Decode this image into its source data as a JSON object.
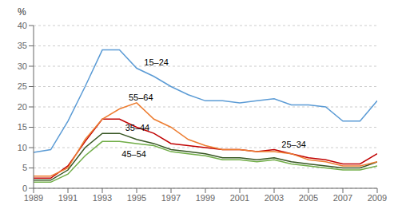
{
  "chart_data": {
    "type": "line",
    "ylabel": "%",
    "x": [
      1989,
      1990,
      1991,
      1992,
      1993,
      1994,
      1995,
      1996,
      1997,
      1998,
      1999,
      2000,
      2001,
      2002,
      2003,
      2004,
      2005,
      2006,
      2007,
      2008,
      2009
    ],
    "series": [
      {
        "name": "15–24",
        "color": "#5b9bd5",
        "values": [
          8.8,
          9.5,
          16.5,
          25.0,
          34.0,
          34.0,
          29.5,
          27.5,
          25.0,
          23.0,
          21.5,
          21.5,
          21.0,
          21.5,
          22.0,
          20.5,
          20.5,
          20.0,
          16.5,
          16.5,
          21.5
        ]
      },
      {
        "name": "25–34",
        "color": "#c00000",
        "values": [
          2.5,
          2.5,
          5.5,
          11.5,
          17.0,
          17.0,
          15.0,
          13.5,
          11.0,
          10.5,
          10.0,
          9.5,
          9.5,
          9.0,
          9.5,
          8.5,
          7.5,
          7.0,
          6.0,
          6.0,
          8.5
        ]
      },
      {
        "name": "35–44",
        "color": "#375623",
        "values": [
          2.0,
          2.0,
          4.5,
          10.0,
          13.5,
          13.5,
          12.0,
          11.0,
          9.5,
          9.0,
          8.5,
          7.5,
          7.5,
          7.0,
          7.5,
          6.5,
          6.0,
          5.5,
          5.0,
          5.0,
          6.5
        ]
      },
      {
        "name": "45–54",
        "color": "#70ad47",
        "values": [
          1.5,
          1.5,
          3.5,
          8.0,
          11.5,
          11.5,
          11.0,
          10.5,
          9.0,
          8.5,
          8.0,
          7.0,
          7.0,
          6.5,
          7.0,
          6.0,
          5.5,
          5.0,
          4.5,
          4.5,
          5.5
        ]
      },
      {
        "name": "55–64",
        "color": "#ed7d31",
        "values": [
          3.0,
          3.0,
          5.0,
          12.0,
          17.0,
          19.5,
          21.0,
          17.0,
          15.0,
          12.0,
          10.5,
          9.5,
          9.5,
          9.0,
          9.0,
          8.5,
          7.0,
          6.5,
          5.5,
          5.5,
          6.5
        ]
      }
    ],
    "annotations": [
      {
        "text": "15–24",
        "x": 1995.2,
        "y": 31.0
      },
      {
        "text": "55–64",
        "x": 1994.3,
        "y": 22.3
      },
      {
        "text": "35–44",
        "x": 1994.1,
        "y": 14.8
      },
      {
        "text": "45–54",
        "x": 1993.9,
        "y": 8.5
      },
      {
        "text": "25–34",
        "x": 2003.2,
        "y": 10.8
      }
    ],
    "xlim": [
      1989,
      2009
    ],
    "xticks": [
      1989,
      1991,
      1993,
      1995,
      1997,
      1999,
      2001,
      2003,
      2005,
      2007,
      2009
    ],
    "ylim": [
      0,
      40
    ],
    "yticks": [
      0,
      5,
      10,
      15,
      20,
      25,
      30,
      35,
      40
    ],
    "grid": true
  }
}
